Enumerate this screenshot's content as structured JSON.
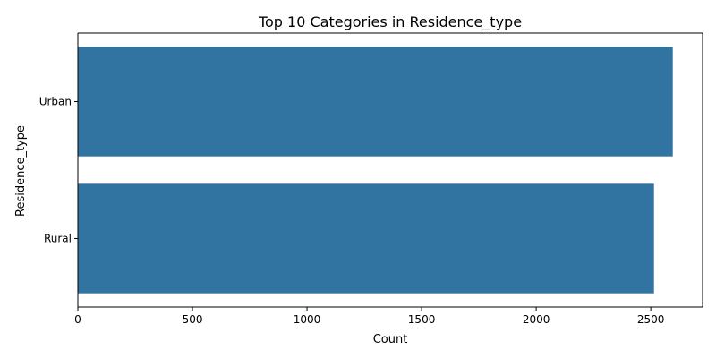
{
  "chart_data": {
    "type": "bar",
    "orientation": "horizontal",
    "title": "Top 10 Categories in Residence_type",
    "xlabel": "Count",
    "ylabel": "Residence_type",
    "categories": [
      "Urban",
      "Rural"
    ],
    "values": [
      2596,
      2514
    ],
    "xlim": [
      0,
      2726
    ],
    "xticks": [
      0,
      500,
      1000,
      1500,
      2000,
      2500
    ],
    "grid": false,
    "legend": "none",
    "bar_color": "#3274a1"
  }
}
